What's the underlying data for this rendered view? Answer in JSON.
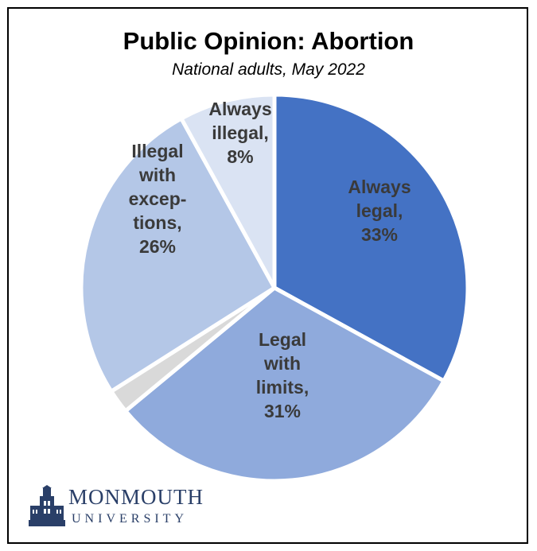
{
  "chart_data": {
    "type": "pie",
    "title": "Public Opinion: Abortion",
    "subtitle": "National adults, May 2022",
    "slices": [
      {
        "label_lines": [
          "Always",
          "legal,",
          "33%"
        ],
        "value": 33,
        "color": "#4472c4"
      },
      {
        "label_lines": [
          "Legal",
          "with",
          "limits,",
          "31%"
        ],
        "value": 31,
        "color": "#8faadc"
      },
      {
        "label_lines": [],
        "value": 2,
        "color": "#d9d9d9"
      },
      {
        "label_lines": [
          "Illegal",
          "with",
          "excep-",
          "tions,",
          "26%"
        ],
        "value": 26,
        "color": "#b4c7e7"
      },
      {
        "label_lines": [
          "Always",
          "illegal,",
          "8%"
        ],
        "value": 8,
        "color": "#dae3f3"
      }
    ],
    "start_angle_deg": 0,
    "direction": "clockwise",
    "legend": "none"
  },
  "branding": {
    "name": "MONMOUTH",
    "sub": "UNIVERSITY",
    "emblem_icon": "university-tower-icon"
  }
}
